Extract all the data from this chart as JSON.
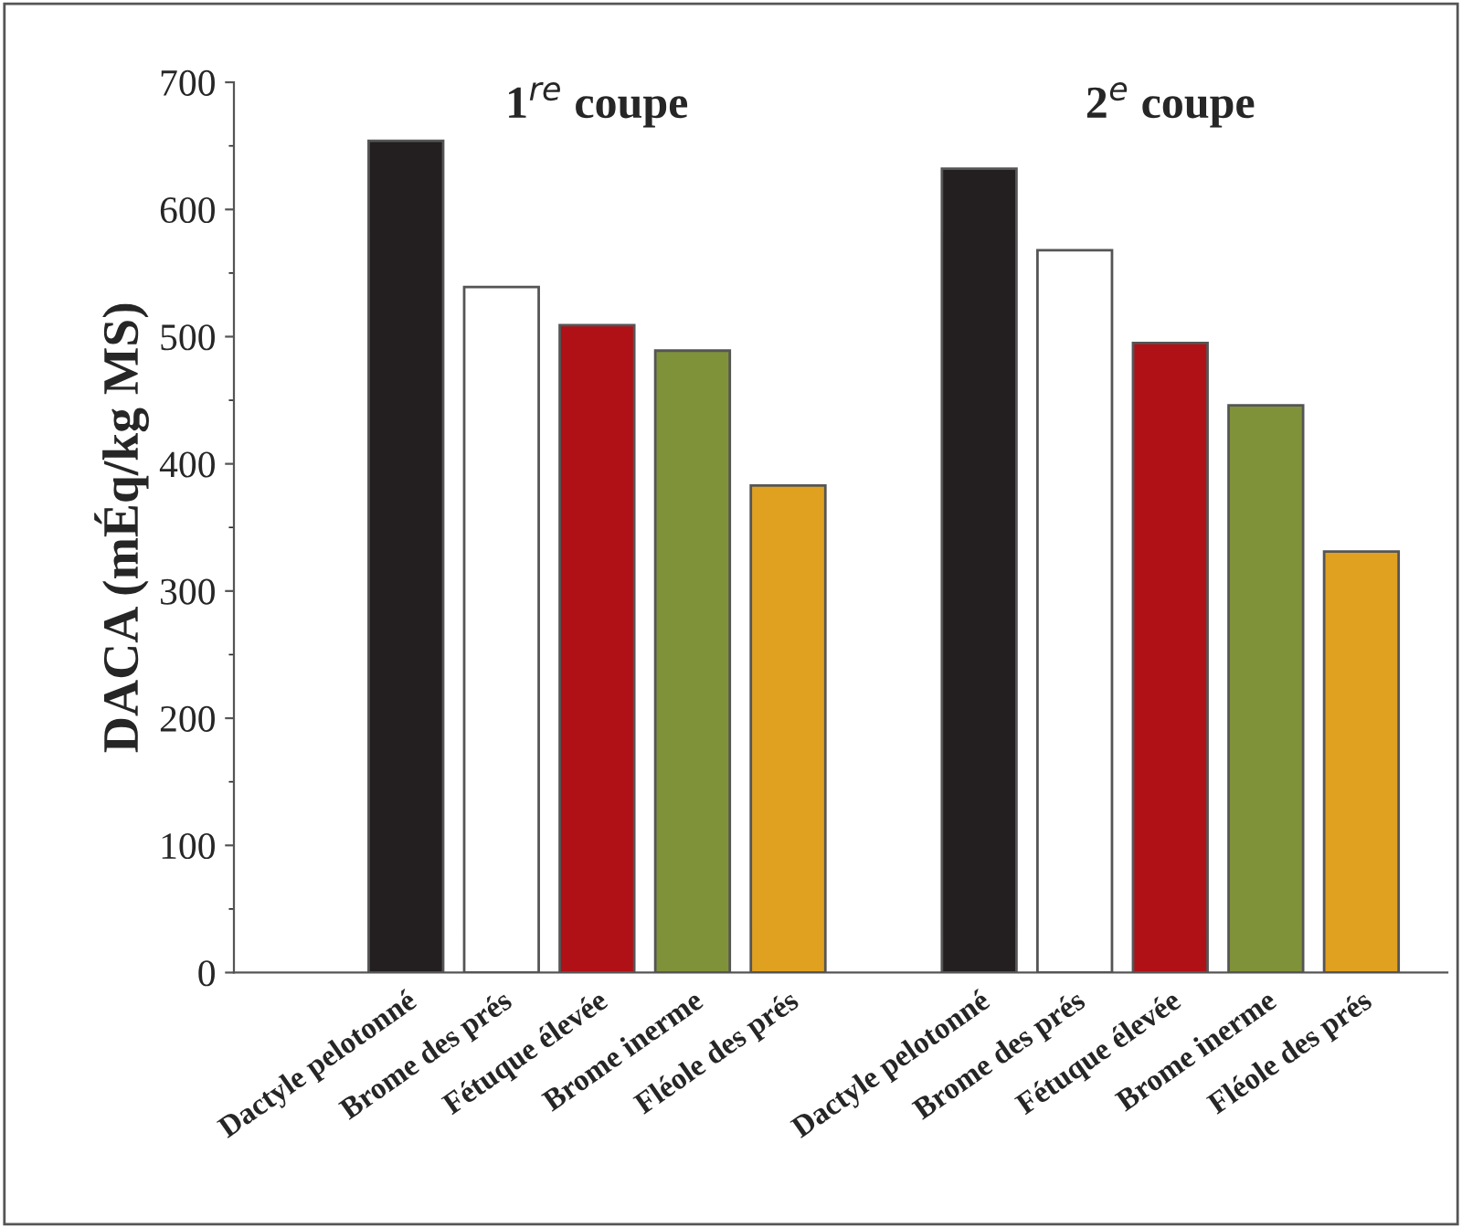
{
  "chart_data": {
    "type": "bar",
    "ylabel": "DACA (mÉq/kg MS)",
    "categories": [
      "Dactyle pelotonné",
      "Brome des prés",
      "Fétuque élevée",
      "Brome inerme",
      "Fléole des prés",
      null,
      "Dactyle pelotonné",
      "Brome des prés",
      "Fétuque élevée",
      "Brome inerme",
      "Fléole des prés"
    ],
    "series": [
      {
        "values": [
          654,
          539,
          509,
          489,
          383,
          null,
          632,
          568,
          495,
          446,
          331
        ],
        "colors": [
          "#231f20",
          "#ffffff",
          "#b01116",
          "#7f923a",
          "#e0a020",
          null,
          "#231f20",
          "#ffffff",
          "#b01116",
          "#7f923a",
          "#e0a020"
        ]
      }
    ],
    "annotations": [
      "1$^{re}$ coupe",
      "2$^{e}$ coupe"
    ],
    "ylim": [
      0,
      700
    ],
    "yticks": [
      0,
      100,
      200,
      300,
      400,
      500,
      600,
      700
    ],
    "grid": false,
    "legend": false
  }
}
